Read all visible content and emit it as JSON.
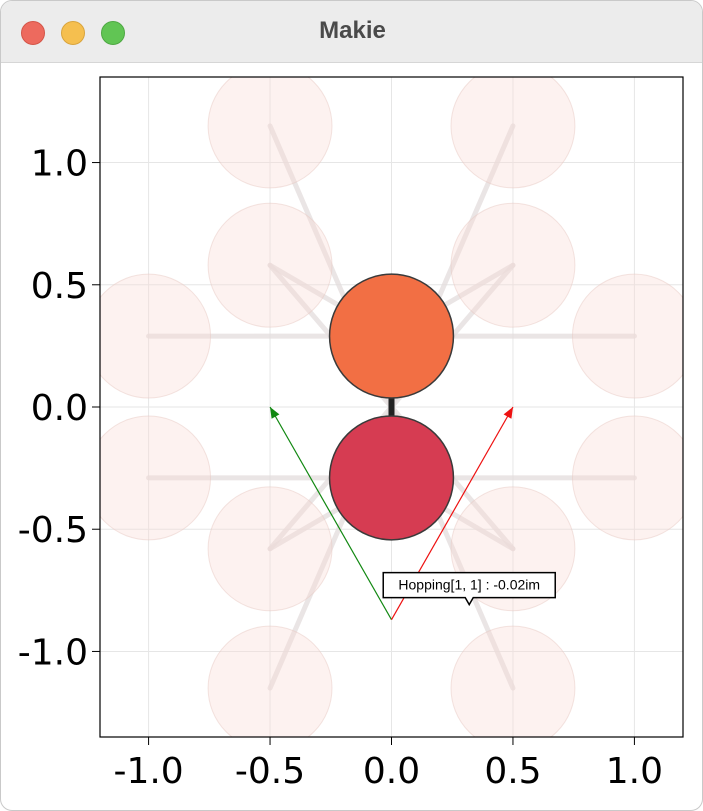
{
  "window": {
    "title": "Makie"
  },
  "chart_data": {
    "type": "scatter",
    "xlim": [
      -1.2,
      1.2
    ],
    "ylim": [
      -1.35,
      1.35
    ],
    "grid": true,
    "x_ticks": [
      "-1.0",
      "-0.5",
      "0.0",
      "0.5",
      "1.0"
    ],
    "y_ticks": [
      "1.0",
      "0.5",
      "0.0",
      "-0.5",
      "-1.0"
    ],
    "x_tick_values": [
      -1.0,
      -0.5,
      0.0,
      0.5,
      1.0
    ],
    "y_tick_values": [
      1.0,
      0.5,
      0.0,
      -0.5,
      -1.0
    ],
    "sites": [
      {
        "x": 0.0,
        "y": 0.29,
        "color": "#f26f44"
      },
      {
        "x": 0.0,
        "y": -0.29,
        "color": "#d63c52"
      }
    ],
    "faded_sites": [
      {
        "x": -0.5,
        "y": 1.15
      },
      {
        "x": 0.5,
        "y": 1.15
      },
      {
        "x": -0.5,
        "y": 0.58
      },
      {
        "x": 0.5,
        "y": 0.58
      },
      {
        "x": -1.0,
        "y": 0.29
      },
      {
        "x": 1.0,
        "y": 0.29
      },
      {
        "x": -1.0,
        "y": -0.29
      },
      {
        "x": 1.0,
        "y": -0.29
      },
      {
        "x": -0.5,
        "y": -0.58
      },
      {
        "x": 0.5,
        "y": -0.58
      },
      {
        "x": -0.5,
        "y": -1.15
      },
      {
        "x": 0.5,
        "y": -1.15
      }
    ],
    "faded_hoppings": [
      [
        [
          -1.0,
          0.29
        ],
        [
          1.0,
          0.29
        ]
      ],
      [
        [
          -1.0,
          -0.29
        ],
        [
          1.0,
          -0.29
        ]
      ],
      [
        [
          -0.5,
          1.15
        ],
        [
          0.5,
          -1.15
        ]
      ],
      [
        [
          0.5,
          1.15
        ],
        [
          -0.5,
          -1.15
        ]
      ],
      [
        [
          -0.5,
          0.58
        ],
        [
          0.5,
          -0.58
        ]
      ],
      [
        [
          0.5,
          0.58
        ],
        [
          -0.5,
          -0.58
        ]
      ],
      [
        [
          -0.5,
          0.58
        ],
        [
          0.0,
          0.29
        ]
      ],
      [
        [
          0.5,
          0.58
        ],
        [
          0.0,
          0.29
        ]
      ],
      [
        [
          -0.5,
          -0.58
        ],
        [
          0.0,
          -0.29
        ]
      ],
      [
        [
          0.5,
          -0.58
        ],
        [
          0.0,
          -0.29
        ]
      ]
    ],
    "hopping": [
      [
        0.0,
        0.29
      ],
      [
        0.0,
        -0.29
      ]
    ],
    "bravais_vectors": [
      {
        "from": [
          0.0,
          -0.87
        ],
        "to": [
          -0.5,
          0.0
        ],
        "color": "#118811"
      },
      {
        "from": [
          0.0,
          -0.87
        ],
        "to": [
          0.5,
          0.0
        ],
        "color": "#ee1111"
      }
    ],
    "tooltip": {
      "text": "Hopping[1, 1] :  -0.02im",
      "x": 0.32,
      "y": -0.78
    }
  }
}
